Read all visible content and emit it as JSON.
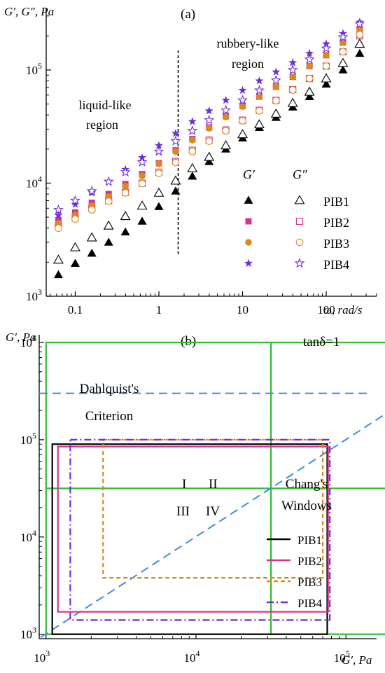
{
  "colors": {
    "PIB1": "#000000",
    "PIB2": "#d6338c",
    "PIB3": "#d98a1c",
    "PIB4": "#6e2fe0",
    "criteria": "#3a8de6",
    "chang": "#33bb33",
    "axis": "#000000"
  },
  "chart_data": [
    {
      "type": "scatter",
      "panel_label": "(a)",
      "ylabel": "G′, G″, Pa",
      "xlabel": "ω, rad/s",
      "xscale": "log",
      "yscale": "log",
      "xlim": [
        0.045,
        400
      ],
      "ylim": [
        1000,
        350000
      ],
      "x_ticks": [
        {
          "value": 0.1,
          "label": "0.1"
        },
        {
          "value": 1,
          "label": "1"
        },
        {
          "value": 10,
          "label": "10"
        },
        {
          "value": 100,
          "label": "100"
        }
      ],
      "y_ticks": [
        {
          "value": 1000,
          "label": "10^3"
        },
        {
          "value": 10000,
          "label": "10^4"
        },
        {
          "value": 100000,
          "label": "10^5"
        }
      ],
      "annotations": {
        "left": [
          "liquid-like",
          "region"
        ],
        "right": [
          "rubbery-like",
          "region"
        ],
        "boundary_x": 1.7
      },
      "legend": {
        "position": "lower-right",
        "header_storage": "G′",
        "header_loss": "G″",
        "entries": [
          "PIB1",
          "PIB2",
          "PIB3",
          "PIB4"
        ]
      },
      "omega": [
        0.063,
        0.1,
        0.158,
        0.251,
        0.398,
        0.631,
        1.0,
        1.585,
        2.512,
        3.981,
        6.31,
        10.0,
        15.85,
        25.12,
        39.81,
        63.1,
        100.0,
        158.5,
        251.2
      ],
      "series": [
        {
          "name": "PIB1",
          "modulus": "G′",
          "marker": "filled-triangle",
          "values": [
            1550,
            1950,
            2400,
            3000,
            3700,
            4600,
            6200,
            8500,
            11500,
            15500,
            20000,
            25000,
            31000,
            38000,
            47000,
            58000,
            75000,
            100000,
            140000
          ]
        },
        {
          "name": "PIB1",
          "modulus": "G″",
          "marker": "open-triangle",
          "values": [
            2100,
            2700,
            3300,
            4200,
            5100,
            6300,
            8200,
            10500,
            13500,
            17000,
            21500,
            27000,
            33000,
            41000,
            51000,
            64000,
            84000,
            115000,
            170000
          ]
        },
        {
          "name": "PIB2",
          "modulus": "G′",
          "marker": "filled-square",
          "values": [
            4700,
            5500,
            6700,
            8000,
            9800,
            12000,
            15000,
            19500,
            24500,
            31000,
            39000,
            48000,
            58000,
            71000,
            87000,
            108000,
            135000,
            175000,
            230000
          ]
        },
        {
          "name": "PIB2",
          "modulus": "G″",
          "marker": "open-square",
          "values": [
            4200,
            5000,
            6000,
            7000,
            8300,
            10000,
            12500,
            15500,
            19500,
            24000,
            29500,
            36000,
            44000,
            54000,
            67000,
            84000,
            108000,
            145000,
            200000
          ]
        },
        {
          "name": "PIB3",
          "modulus": "G′",
          "marker": "filled-circle",
          "values": [
            4400,
            5200,
            6300,
            7600,
            9400,
            11600,
            14800,
            19000,
            24000,
            30500,
            38500,
            47500,
            58000,
            71000,
            87000,
            108000,
            135000,
            175000,
            230000
          ]
        },
        {
          "name": "PIB3",
          "modulus": "G″",
          "marker": "open-circle",
          "values": [
            4000,
            4800,
            5800,
            6900,
            8200,
            9900,
            12200,
            15200,
            19000,
            23500,
            29000,
            35500,
            43500,
            53500,
            66500,
            84000,
            108000,
            145000,
            205000
          ]
        },
        {
          "name": "PIB4",
          "modulus": "G′",
          "marker": "filled-star",
          "values": [
            5200,
            6500,
            8200,
            10400,
            13200,
            16800,
            21500,
            27500,
            35000,
            43500,
            54000,
            66000,
            80000,
            96000,
            116000,
            140000,
            170000,
            210000,
            265000
          ]
        },
        {
          "name": "PIB4",
          "modulus": "G″",
          "marker": "open-star",
          "values": [
            5800,
            7000,
            8500,
            10300,
            12500,
            15300,
            19000,
            23500,
            29000,
            36000,
            44000,
            54000,
            66000,
            81000,
            100000,
            124000,
            155000,
            195000,
            255000
          ]
        }
      ]
    },
    {
      "type": "diagram",
      "panel_label": "(b)",
      "ylabel": "G′, Pa",
      "xlabel": "G′, Pa",
      "xscale": "log",
      "yscale": "log",
      "xlim": [
        900,
        160000
      ],
      "ylim": [
        900,
        1200000
      ],
      "x_ticks": [
        {
          "value": 1000,
          "label": "10^3"
        },
        {
          "value": 10000,
          "label": "10^4"
        },
        {
          "value": 100000,
          "label": "10^5"
        }
      ],
      "y_ticks": [
        {
          "value": 1000,
          "label": "10^3"
        },
        {
          "value": 10000,
          "label": "10^4"
        },
        {
          "value": 100000,
          "label": "10^5"
        },
        {
          "value": 1000000,
          "label": "10^6"
        }
      ],
      "tan_delta_line": {
        "label": "tanδ=1",
        "from": 1000,
        "to": 1000000
      },
      "dahlquist": {
        "label": [
          "Dahlquist's",
          "Criterion"
        ],
        "value": 300000
      },
      "chang_windows": {
        "label": [
          "Chang's",
          "Windows"
        ],
        "outer": {
          "x": [
            1000,
            1000000
          ],
          "y": [
            1000,
            1000000
          ]
        },
        "divider_x": 31600,
        "divider_y": 31600,
        "quadrants": [
          "I",
          "II",
          "III",
          "IV"
        ]
      },
      "legend": {
        "position": "lower-right",
        "entries": [
          "PIB1",
          "PIB2",
          "PIB3",
          "PIB4"
        ]
      },
      "windows": [
        {
          "name": "PIB1",
          "style": "solid",
          "x": [
            1100,
            75000
          ],
          "y": [
            1000,
            90000
          ]
        },
        {
          "name": "PIB2",
          "style": "solid",
          "x": [
            1200,
            76000
          ],
          "y": [
            1700,
            85000
          ]
        },
        {
          "name": "PIB3",
          "style": "dashed",
          "x": [
            2400,
            70000
          ],
          "y": [
            3800,
            100000
          ]
        },
        {
          "name": "PIB4",
          "style": "dashdot",
          "x": [
            1450,
            78000
          ],
          "y": [
            1400,
            100000
          ]
        }
      ]
    }
  ]
}
